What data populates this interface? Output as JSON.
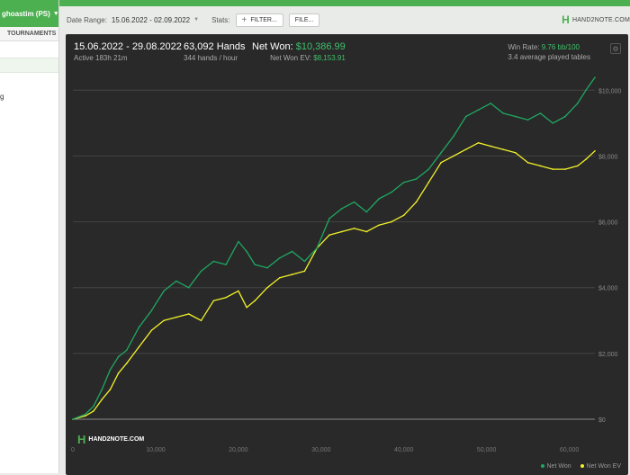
{
  "sidebar": {
    "player_label": "ghoastim (PS)",
    "tab_label": "TOURNAMENTS",
    "fragment_text": "g"
  },
  "header": {
    "date_range_label": "Date Range:",
    "date_range_value": "15.06.2022 - 02.09.2022",
    "stats_label": "Stats:",
    "filter_button": "FILTER...",
    "file_button": "FILE...",
    "logo_text": "HAND2NOTE.COM"
  },
  "summary": {
    "period": "15.06.2022 - 29.08.2022",
    "active": "Active 183h 21m",
    "hands": "63,092 Hands",
    "hands_rate": "344 hands / hour",
    "net_won_label": "Net Won:",
    "net_won_value": "$10,386.99",
    "net_won_ev_label": "Net Won  EV:",
    "net_won_ev_value": "$8,153.91",
    "win_rate_label": "Win Rate:",
    "win_rate_value": "9.76 bb/100",
    "tables": "3.4 average played tables"
  },
  "colors": {
    "accent": "#4caf50",
    "net_won": "#1fa862",
    "net_won_ev": "#f2f22a",
    "panel_bg": "#292929"
  },
  "icons": [
    "settings-icon",
    "plus-icon",
    "chevron-down-icon",
    "hand2note-logo-icon"
  ],
  "chart_data": {
    "type": "line",
    "xlim": [
      0,
      63092
    ],
    "ylim": [
      0,
      10500
    ],
    "x_ticks": [
      0,
      10000,
      20000,
      30000,
      40000,
      50000,
      60000
    ],
    "x_tick_labels": [
      "0",
      "10,000",
      "20,000",
      "30,000",
      "40,000",
      "50,000",
      "60,000"
    ],
    "y_ticks": [
      0,
      2000,
      4000,
      6000,
      8000,
      10000
    ],
    "y_tick_labels": [
      "$0",
      "$2,000",
      "$4,000",
      "$6,000",
      "$8,000",
      "$10,000"
    ],
    "grid": true,
    "legend_position": "bottom-right",
    "watermark": "HAND2NOTE.COM",
    "series": [
      {
        "name": "Net Won",
        "color": "#1fa862",
        "x": [
          0,
          1500,
          2500,
          3500,
          4500,
          5500,
          6500,
          8000,
          9500,
          11000,
          12500,
          14000,
          15500,
          17000,
          18500,
          20000,
          21000,
          22000,
          23500,
          25000,
          26500,
          28000,
          29500,
          31000,
          32500,
          34000,
          35500,
          37000,
          38500,
          40000,
          41500,
          43000,
          44500,
          46000,
          47500,
          49000,
          50500,
          52000,
          53500,
          55000,
          56500,
          58000,
          59500,
          61000,
          62000,
          63092
        ],
        "y": [
          0,
          150,
          400,
          900,
          1500,
          1900,
          2100,
          2800,
          3300,
          3900,
          4200,
          4000,
          4500,
          4800,
          4700,
          5400,
          5100,
          4700,
          4600,
          4900,
          5100,
          4800,
          5200,
          6100,
          6400,
          6600,
          6300,
          6700,
          6900,
          7200,
          7300,
          7600,
          8100,
          8600,
          9200,
          9400,
          9600,
          9300,
          9200,
          9100,
          9300,
          9000,
          9200,
          9600,
          10000,
          10387
        ]
      },
      {
        "name": "Net Won  EV",
        "color": "#f2f22a",
        "x": [
          0,
          1500,
          2500,
          3500,
          4500,
          5500,
          6500,
          8000,
          9500,
          11000,
          12500,
          14000,
          15500,
          17000,
          18500,
          20000,
          21000,
          22000,
          23500,
          25000,
          26500,
          28000,
          29500,
          31000,
          32500,
          34000,
          35500,
          37000,
          38500,
          40000,
          41500,
          43000,
          44500,
          46000,
          47500,
          49000,
          50500,
          52000,
          53500,
          55000,
          56500,
          58000,
          59500,
          61000,
          62000,
          63092
        ],
        "y": [
          0,
          100,
          250,
          600,
          900,
          1400,
          1700,
          2200,
          2700,
          3000,
          3100,
          3200,
          3000,
          3600,
          3700,
          3900,
          3400,
          3600,
          4000,
          4300,
          4400,
          4500,
          5200,
          5600,
          5700,
          5800,
          5700,
          5900,
          6000,
          6200,
          6600,
          7200,
          7800,
          8000,
          8200,
          8400,
          8300,
          8200,
          8100,
          7800,
          7700,
          7600,
          7600,
          7700,
          7900,
          8154
        ]
      }
    ]
  }
}
